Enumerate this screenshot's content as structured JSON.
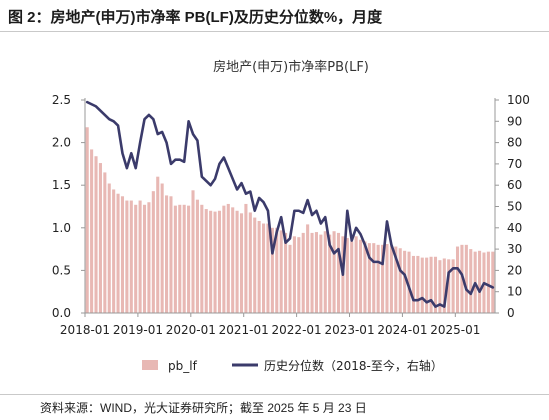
{
  "figure": {
    "title": "图 2：房地产(申万)市净率 PB(LF)及历史分位数%，月度",
    "source": "资料来源：WIND，光大证券研究所；截至 2025 年 5 月 23 日"
  },
  "colors": {
    "bar": "#e8b8b4",
    "line": "#3b3b6b",
    "axis": "#999999"
  },
  "chart_data": {
    "type": "bar+line",
    "title": "房地产(申万)市净率PB(LF)",
    "x_tick_labels": [
      "2018-01",
      "2019-01",
      "2020-01",
      "2021-01",
      "2022-01",
      "2023-01",
      "2024-01",
      "2025-01"
    ],
    "x_start": "2018-01",
    "left_axis": {
      "ylim": [
        0,
        2.5
      ],
      "ticks": [
        "0.0",
        "0.5",
        "1.0",
        "1.5",
        "2.0",
        "2.5"
      ]
    },
    "right_axis": {
      "ylim": [
        0,
        100
      ],
      "ticks": [
        "0",
        "10",
        "20",
        "30",
        "40",
        "50",
        "60",
        "70",
        "80",
        "90",
        "100"
      ]
    },
    "legend_position": "bottom",
    "series": [
      {
        "name": "pb_lf",
        "type": "bar",
        "axis": "left",
        "values": [
          2.18,
          1.92,
          1.84,
          1.76,
          1.65,
          1.52,
          1.45,
          1.4,
          1.37,
          1.32,
          1.32,
          1.27,
          1.32,
          1.27,
          1.3,
          1.43,
          1.6,
          1.52,
          1.38,
          1.37,
          1.26,
          1.27,
          1.27,
          1.26,
          1.44,
          1.33,
          1.27,
          1.22,
          1.2,
          1.19,
          1.2,
          1.26,
          1.28,
          1.24,
          1.2,
          1.17,
          1.28,
          1.18,
          1.12,
          1.08,
          1.05,
          1.05,
          1.0,
          1.0,
          0.97,
          0.94,
          0.8,
          0.9,
          0.89,
          0.94,
          1.04,
          0.94,
          0.95,
          0.92,
          0.96,
          0.92,
          0.96,
          0.94,
          0.9,
          0.88,
          0.84,
          0.9,
          0.86,
          0.84,
          0.82,
          0.82,
          0.8,
          0.8,
          0.81,
          0.79,
          0.78,
          0.76,
          0.73,
          0.72,
          0.67,
          0.67,
          0.65,
          0.65,
          0.66,
          0.66,
          0.62,
          0.64,
          0.63,
          0.63,
          0.78,
          0.8,
          0.8,
          0.75,
          0.72,
          0.73,
          0.71,
          0.72,
          0.72
        ]
      },
      {
        "name": "历史分位数（2018-至今，右轴）",
        "type": "line",
        "axis": "right",
        "values": [
          99,
          98,
          97,
          95,
          93,
          91,
          90,
          88,
          75,
          68,
          75,
          68,
          80,
          91,
          93,
          91,
          84,
          85,
          80,
          70,
          72,
          72,
          71,
          90,
          84,
          81,
          64,
          62,
          60,
          63,
          70,
          73,
          68,
          63,
          58,
          61,
          56,
          57,
          48,
          54,
          52,
          48,
          28,
          38,
          45,
          33,
          35,
          48,
          48,
          47,
          53,
          46,
          48,
          42,
          45,
          32,
          28,
          30,
          18,
          48,
          34,
          40,
          37,
          32,
          26,
          24,
          24,
          23,
          43,
          32,
          26,
          20,
          18,
          12,
          6,
          6,
          7,
          5,
          6,
          3,
          4,
          3,
          19,
          21,
          21,
          18,
          11,
          9,
          14,
          10,
          14,
          13,
          12
        ]
      }
    ]
  }
}
